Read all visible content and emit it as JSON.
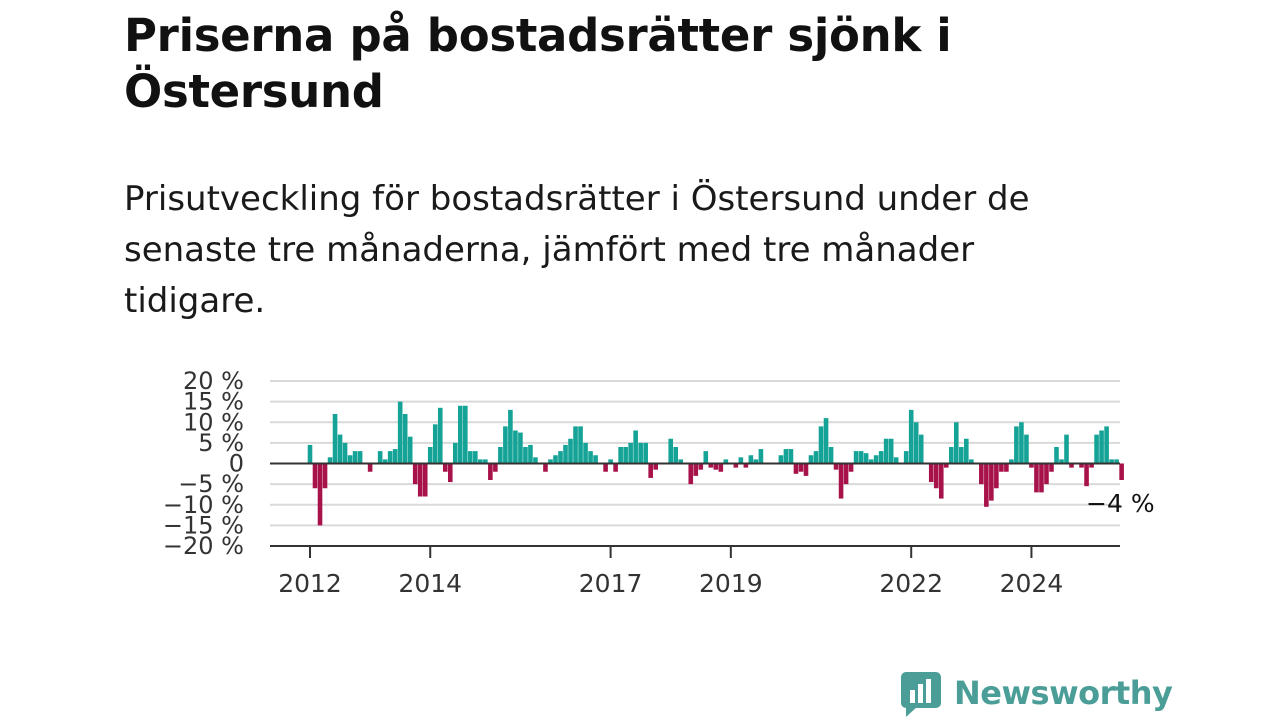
{
  "header": {
    "title": "Priserna på bostadsrätter sjönk i Östersund",
    "subtitle": "Prisutveckling för bostadsrätter i Östersund under de senaste tre månaderna, jämfört med tre månader tidigare."
  },
  "brand": {
    "name": "Newsworthy",
    "color": "#4a9e97"
  },
  "chart_data": {
    "type": "bar",
    "x_start": "2012-01",
    "x_end": "2025-07",
    "ylim": [
      -20,
      20
    ],
    "y_ticks": [
      20,
      15,
      10,
      5,
      0,
      -5,
      -10,
      -15,
      -20
    ],
    "y_tick_labels": [
      "20 %",
      "15 %",
      "10 %",
      "5 %",
      "0",
      "−5 %",
      "−10 %",
      "−15 %",
      "−20 %"
    ],
    "x_tick_labels": [
      "2012",
      "2014",
      "2017",
      "2019",
      "2022",
      "2024"
    ],
    "x_tick_dates": [
      "2012-01",
      "2014-01",
      "2017-01",
      "2019-01",
      "2022-01",
      "2024-01"
    ],
    "grid": true,
    "positive_color": "#14a396",
    "negative_color": "#a8124a",
    "annotation": {
      "text": "−4 %",
      "target": "last"
    },
    "series": [
      {
        "values": [
          4.5,
          -6,
          -15,
          -6,
          1.5,
          12,
          7,
          5,
          2,
          3,
          3,
          0,
          -2,
          0,
          3,
          1,
          3,
          3.5,
          15,
          12,
          6.5,
          -5,
          -8,
          -8,
          4,
          9.5,
          13.5,
          -2,
          -4.5,
          5,
          14,
          14,
          3,
          3,
          1,
          1,
          -4,
          -2,
          4,
          9,
          13,
          8,
          7.5,
          4,
          4.5,
          1.5,
          0,
          -2,
          1,
          2,
          3,
          4.5,
          6,
          9,
          9,
          5,
          3,
          2,
          0,
          -2,
          1,
          -2,
          4,
          4,
          5,
          8,
          5,
          5,
          -3.5,
          -1.5,
          0,
          0,
          6,
          4,
          1,
          0,
          -5,
          -3,
          -1.5,
          3,
          -1,
          -1.5,
          -2,
          1,
          0,
          -1,
          1.5,
          -1,
          2,
          1,
          3.5,
          0,
          0,
          0,
          2,
          3.5,
          3.5,
          -2.5,
          -2,
          -3,
          2,
          3,
          9,
          11,
          4,
          -1.5,
          -8.5,
          -5,
          -2,
          3,
          3,
          2.5,
          1,
          2,
          3,
          6,
          6,
          1.5,
          0,
          3,
          13,
          10,
          7,
          0,
          -4.5,
          -6,
          -8.5,
          -1,
          4,
          10,
          4,
          6,
          1,
          0,
          -5,
          -10.5,
          -9,
          -6,
          -2,
          -2,
          1,
          9,
          10,
          7,
          -1,
          -7,
          -7,
          -5,
          -2,
          4,
          1,
          7,
          -1,
          0,
          -1,
          -5.5,
          -1,
          7,
          8,
          9,
          1,
          1,
          -4
        ]
      }
    ]
  }
}
